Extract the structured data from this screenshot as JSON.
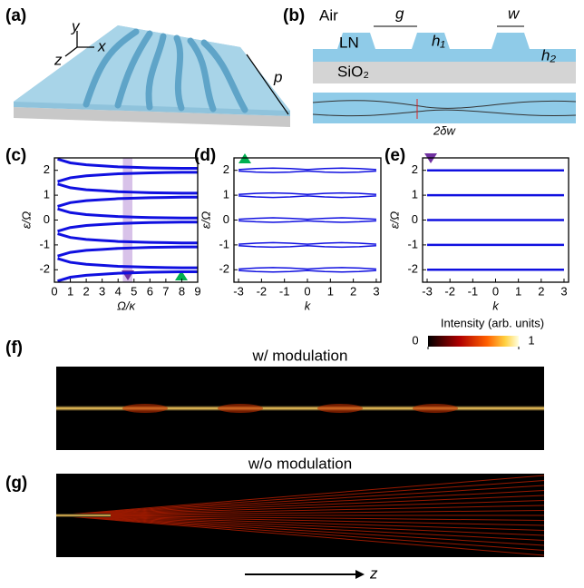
{
  "panel_labels": [
    "(a)",
    "(b)",
    "(c)",
    "(d)",
    "(e)",
    "(f)",
    "(g)"
  ],
  "a": {
    "axes": [
      "y",
      "x",
      "z"
    ],
    "period": "p"
  },
  "b": {
    "air": "Air",
    "gap": "g",
    "width": "w",
    "core": "LN",
    "h1": "h₁",
    "h2": "h₂",
    "substrate": "SiO₂",
    "modulation": "2δw"
  },
  "chart_data": [
    {
      "type": "line",
      "xlabel": "Ω/κ",
      "ylabel": "ε/Ω",
      "x": [
        0.2,
        1,
        2,
        3,
        4,
        5,
        6,
        7,
        8,
        9
      ],
      "xlim": [
        0,
        9
      ],
      "ylim": [
        -2.5,
        2.5
      ],
      "xticks": [
        0,
        1,
        2,
        3,
        4,
        5,
        6,
        7,
        8,
        9
      ],
      "yticks": [
        -2,
        -1,
        0,
        1,
        2
      ],
      "line_width": 3,
      "series": [
        {
          "color": "#1010e0",
          "values": [
            2.45,
            2.3,
            2.22,
            2.18,
            2.14,
            2.12,
            2.1,
            2.09,
            2.08,
            2.08
          ]
        },
        {
          "color": "#1010e0",
          "values": [
            1.55,
            1.7,
            1.78,
            1.82,
            1.86,
            1.88,
            1.9,
            1.91,
            1.92,
            1.92
          ]
        },
        {
          "color": "#1010e0",
          "values": [
            1.45,
            1.3,
            1.22,
            1.18,
            1.14,
            1.12,
            1.1,
            1.09,
            1.08,
            1.08
          ]
        },
        {
          "color": "#1010e0",
          "values": [
            0.55,
            0.7,
            0.78,
            0.82,
            0.86,
            0.88,
            0.9,
            0.91,
            0.92,
            0.92
          ]
        },
        {
          "color": "#1010e0",
          "values": [
            0.45,
            0.3,
            0.22,
            0.18,
            0.14,
            0.12,
            0.1,
            0.09,
            0.08,
            0.08
          ]
        },
        {
          "color": "#1010e0",
          "values": [
            -0.45,
            -0.3,
            -0.22,
            -0.18,
            -0.14,
            -0.12,
            -0.1,
            -0.09,
            -0.08,
            -0.08
          ]
        },
        {
          "color": "#1010e0",
          "values": [
            -0.55,
            -0.7,
            -0.78,
            -0.82,
            -0.86,
            -0.88,
            -0.9,
            -0.91,
            -0.92,
            -0.92
          ]
        },
        {
          "color": "#1010e0",
          "values": [
            -1.45,
            -1.3,
            -1.22,
            -1.18,
            -1.14,
            -1.12,
            -1.1,
            -1.09,
            -1.08,
            -1.08
          ]
        },
        {
          "color": "#1010e0",
          "values": [
            -1.55,
            -1.7,
            -1.78,
            -1.82,
            -1.86,
            -1.88,
            -1.9,
            -1.91,
            -1.92,
            -1.92
          ]
        },
        {
          "color": "#1010e0",
          "values": [
            -2.45,
            -2.3,
            -2.22,
            -2.18,
            -2.14,
            -2.12,
            -2.1,
            -2.09,
            -2.08,
            -2.08
          ]
        }
      ]
    },
    {
      "type": "line",
      "xlabel": "k",
      "ylabel": "ε/Ω",
      "x": [
        -3,
        -2.25,
        -1.5,
        -0.75,
        0,
        0.75,
        1.5,
        2.25,
        3
      ],
      "xlim": [
        -3.2,
        3.2
      ],
      "ylim": [
        -2.5,
        2.5
      ],
      "xticks": [
        -3,
        -2,
        -1,
        0,
        1,
        2,
        3
      ],
      "yticks": [
        -2,
        -1,
        0,
        1,
        2
      ],
      "line_width": 1.5,
      "series": [
        {
          "color": "#1010e0",
          "values": [
            2.03,
            2.07,
            2.09,
            2.07,
            2.03,
            2.07,
            2.09,
            2.07,
            2.03
          ]
        },
        {
          "color": "#1010e0",
          "values": [
            1.97,
            1.93,
            1.91,
            1.93,
            1.97,
            1.93,
            1.91,
            1.93,
            1.97
          ]
        },
        {
          "color": "#1010e0",
          "values": [
            1.03,
            1.07,
            1.09,
            1.07,
            1.03,
            1.07,
            1.09,
            1.07,
            1.03
          ]
        },
        {
          "color": "#1010e0",
          "values": [
            0.97,
            0.93,
            0.91,
            0.93,
            0.97,
            0.93,
            0.91,
            0.93,
            0.97
          ]
        },
        {
          "color": "#1010e0",
          "values": [
            0.03,
            0.07,
            0.09,
            0.07,
            0.03,
            0.07,
            0.09,
            0.07,
            0.03
          ]
        },
        {
          "color": "#1010e0",
          "values": [
            -0.03,
            -0.07,
            -0.09,
            -0.07,
            -0.03,
            -0.07,
            -0.09,
            -0.07,
            -0.03
          ]
        },
        {
          "color": "#1010e0",
          "values": [
            -0.97,
            -0.93,
            -0.91,
            -0.93,
            -0.97,
            -0.93,
            -0.91,
            -0.93,
            -0.97
          ]
        },
        {
          "color": "#1010e0",
          "values": [
            -1.03,
            -1.07,
            -1.09,
            -1.07,
            -1.03,
            -1.07,
            -1.09,
            -1.07,
            -1.03
          ]
        },
        {
          "color": "#1010e0",
          "values": [
            -1.97,
            -1.93,
            -1.91,
            -1.93,
            -1.97,
            -1.93,
            -1.91,
            -1.93,
            -1.97
          ]
        },
        {
          "color": "#1010e0",
          "values": [
            -2.03,
            -2.07,
            -2.09,
            -2.07,
            -2.03,
            -2.07,
            -2.09,
            -2.07,
            -2.03
          ]
        }
      ]
    },
    {
      "type": "line",
      "xlabel": "k",
      "ylabel": "ε/Ω",
      "x": [
        -3,
        3
      ],
      "xlim": [
        -3.2,
        3.2
      ],
      "ylim": [
        -2.5,
        2.5
      ],
      "xticks": [
        -3,
        -2,
        -1,
        0,
        1,
        2,
        3
      ],
      "yticks": [
        -2,
        -1,
        0,
        1,
        2
      ],
      "line_width": 2.5,
      "series": [
        {
          "color": "#1010e0",
          "values": [
            2,
            2
          ]
        },
        {
          "color": "#1010e0",
          "values": [
            1,
            1
          ]
        },
        {
          "color": "#1010e0",
          "values": [
            0,
            0
          ]
        },
        {
          "color": "#1010e0",
          "values": [
            -1,
            -1
          ]
        },
        {
          "color": "#1010e0",
          "values": [
            -2,
            -2
          ]
        }
      ]
    }
  ],
  "f": {
    "title": "w/ modulation"
  },
  "g": {
    "title": "w/o modulation"
  },
  "colorbar": {
    "label": "Intensity (arb. units)",
    "ticks": [
      0,
      1
    ]
  },
  "propagation": "z"
}
